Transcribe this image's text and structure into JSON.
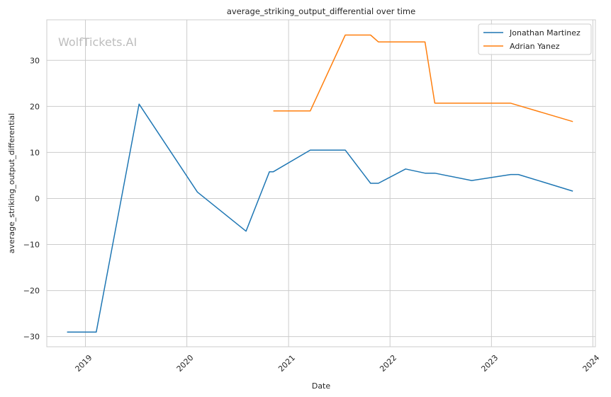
{
  "watermark": "WolfTickets.AI",
  "chart_data": {
    "type": "line",
    "title": "average_striking_output_differential over time",
    "xlabel": "Date",
    "ylabel": "average_striking_output_differential",
    "x_ticks": [
      "2019",
      "2020",
      "2021",
      "2022",
      "2023",
      "2024"
    ],
    "y_ticks": [
      -30,
      -20,
      -10,
      0,
      10,
      20,
      30
    ],
    "xlim": [
      "2018-08-15",
      "2024-01-10"
    ],
    "ylim": [
      -32.2,
      38.8
    ],
    "grid": true,
    "legend_position": "top-right",
    "series": [
      {
        "name": "Jonathan Martinez",
        "color": "#1f77b4",
        "points": [
          [
            "2018-10-27",
            -29.0
          ],
          [
            "2019-02-09",
            -29.0
          ],
          [
            "2019-07-13",
            20.5
          ],
          [
            "2020-02-08",
            1.4
          ],
          [
            "2020-08-01",
            -7.1
          ],
          [
            "2020-10-24",
            5.8
          ],
          [
            "2020-11-07",
            5.8
          ],
          [
            "2021-03-20",
            10.5
          ],
          [
            "2021-07-24",
            10.5
          ],
          [
            "2021-10-23",
            3.3
          ],
          [
            "2021-11-20",
            3.3
          ],
          [
            "2022-02-26",
            6.4
          ],
          [
            "2022-05-07",
            5.5
          ],
          [
            "2022-06-11",
            5.5
          ],
          [
            "2022-10-22",
            3.9
          ],
          [
            "2023-03-11",
            5.2
          ],
          [
            "2023-04-08",
            5.2
          ],
          [
            "2023-10-21",
            1.6
          ]
        ]
      },
      {
        "name": "Adrian Yanez",
        "color": "#ff7f0e",
        "points": [
          [
            "2020-11-07",
            19.0
          ],
          [
            "2021-03-20",
            19.0
          ],
          [
            "2021-07-24",
            35.5
          ],
          [
            "2021-10-23",
            35.5
          ],
          [
            "2021-11-20",
            34.0
          ],
          [
            "2022-05-07",
            34.0
          ],
          [
            "2022-06-11",
            20.7
          ],
          [
            "2023-03-11",
            20.7
          ],
          [
            "2023-10-21",
            16.7
          ]
        ]
      }
    ]
  }
}
